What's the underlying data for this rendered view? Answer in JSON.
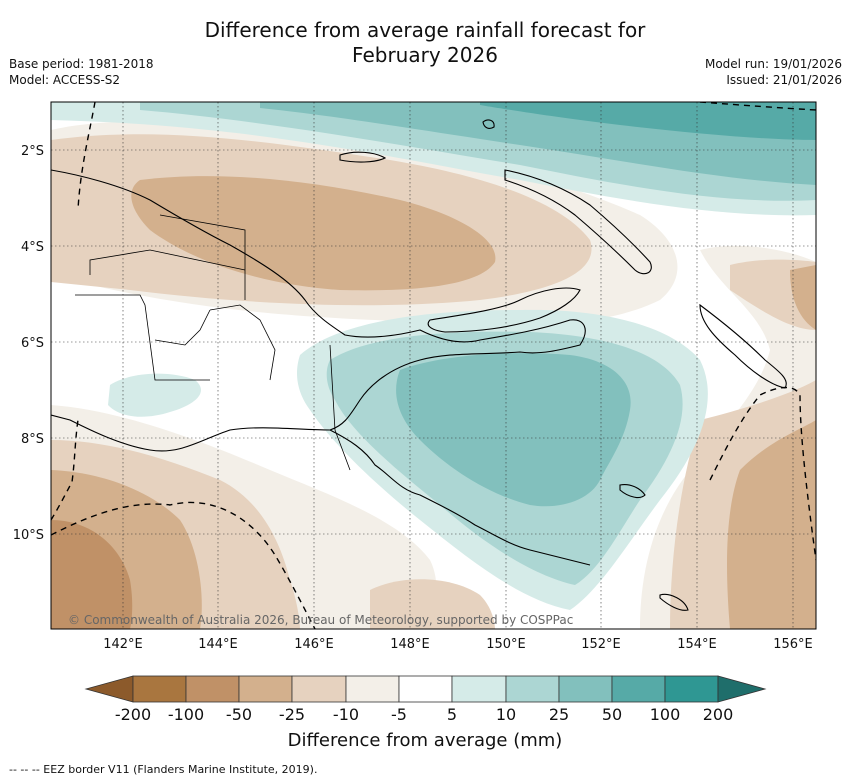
{
  "header": {
    "title_line1": "Difference from average rainfall forecast for",
    "title_line2": "February 2026",
    "base_period": "Base period: 1981-2018",
    "model": "Model: ACCESS-S2",
    "model_run": "Model run: 19/01/2026",
    "issued": "Issued: 21/01/2026"
  },
  "map": {
    "lat_labels": [
      "2°S",
      "4°S",
      "6°S",
      "8°S",
      "10°S"
    ],
    "lon_labels": [
      "142°E",
      "144°E",
      "146°E",
      "148°E",
      "150°E",
      "152°E",
      "154°E",
      "156°E"
    ],
    "copyright": "© Commonwealth of Australia 2026, Bureau of Meteorology, supported by COSPPac"
  },
  "colorbar": {
    "title": "Difference from average (mm)",
    "labels": [
      "-200",
      "-100",
      "-50",
      "-25",
      "-10",
      "-5",
      "5",
      "10",
      "25",
      "50",
      "100",
      "200"
    ],
    "colors": {
      "lt_-200": "#8c5a2b",
      "-200_-100": "#a9763f",
      "-100_-50": "#c09167",
      "-50_-25": "#d3b08d",
      "-25_-10": "#e6d2bf",
      "-10_-5": "#f3efe8",
      "-5_5": "#ffffff",
      "5_10": "#d5ebe8",
      "10_25": "#acd6d3",
      "25_50": "#82c0bd",
      "50_100": "#56aaa7",
      "100_200": "#2f9793",
      "gt_200": "#1f6e6b"
    }
  },
  "footer": {
    "eez_note": "--  --  -- EEZ border V11 (Flanders Marine Institute, 2019)."
  }
}
